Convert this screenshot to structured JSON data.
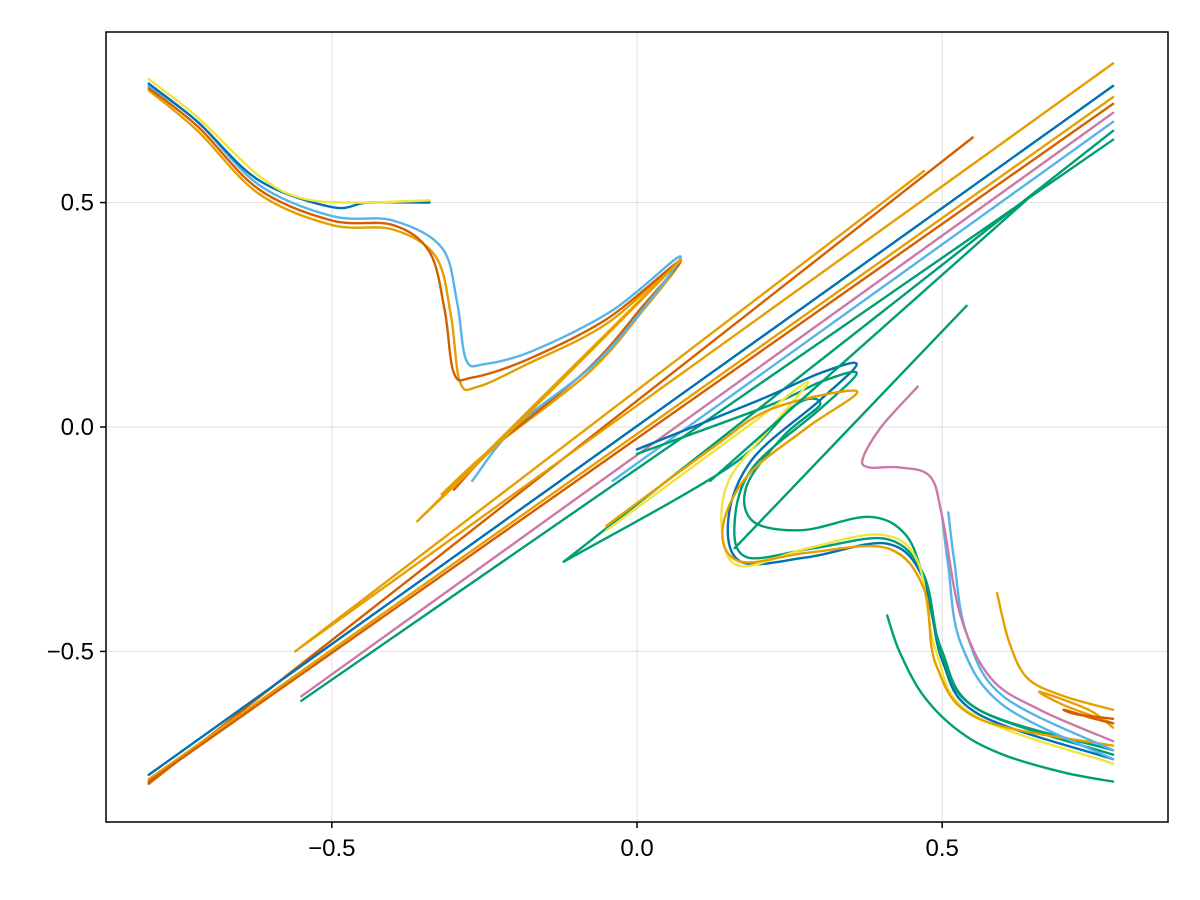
{
  "chart_data": {
    "type": "line",
    "title": "",
    "xlabel": "",
    "ylabel": "",
    "xlim": [
      -0.87,
      0.87
    ],
    "ylim": [
      -0.88,
      0.88
    ],
    "grid": true,
    "legend": "none",
    "xticks": [
      {
        "value": -0.5,
        "label": "−0.5"
      },
      {
        "value": 0.0,
        "label": "0.0"
      },
      {
        "value": 0.5,
        "label": "0.5"
      }
    ],
    "yticks": [
      {
        "value": 0.5,
        "label": "0.5"
      },
      {
        "value": 0.0,
        "label": "0.0"
      },
      {
        "value": -0.5,
        "label": "−0.5"
      }
    ],
    "series": [
      {
        "color": "#e69f00",
        "x": [
          -0.8,
          -0.72,
          -0.62,
          -0.5,
          -0.4,
          -0.33,
          -0.305,
          -0.29,
          -0.26,
          -0.18,
          -0.05,
          0.07,
          0.01,
          -0.08,
          -0.24,
          -0.32
        ],
        "y": [
          0.75,
          0.66,
          0.52,
          0.45,
          0.44,
          0.38,
          0.25,
          0.1,
          0.09,
          0.14,
          0.23,
          0.37,
          0.26,
          0.12,
          -0.05,
          -0.15
        ]
      },
      {
        "color": "#d55e00",
        "x": [
          -0.8,
          -0.72,
          -0.62,
          -0.5,
          -0.4,
          -0.34,
          -0.315,
          -0.3,
          -0.27,
          -0.18,
          -0.05,
          0.07,
          0.01,
          -0.08,
          -0.23,
          -0.3
        ],
        "y": [
          0.755,
          0.67,
          0.53,
          0.46,
          0.45,
          0.39,
          0.26,
          0.12,
          0.11,
          0.15,
          0.24,
          0.37,
          0.27,
          0.13,
          -0.04,
          -0.14
        ]
      },
      {
        "color": "#56b4e9",
        "x": [
          -0.8,
          -0.72,
          -0.62,
          -0.5,
          -0.4,
          -0.32,
          -0.295,
          -0.28,
          -0.25,
          -0.17,
          -0.04,
          0.07,
          0.02,
          -0.07,
          -0.2,
          -0.27
        ],
        "y": [
          0.76,
          0.68,
          0.54,
          0.47,
          0.46,
          0.4,
          0.28,
          0.15,
          0.14,
          0.17,
          0.26,
          0.38,
          0.28,
          0.14,
          0.0,
          -0.12
        ]
      },
      {
        "color": "#0072b2",
        "x": [
          -0.8,
          -0.72,
          -0.62,
          -0.5,
          -0.44,
          -0.34
        ],
        "y": [
          0.765,
          0.68,
          0.55,
          0.49,
          0.5,
          0.5
        ]
      },
      {
        "color": "#f0e442",
        "x": [
          -0.8,
          -0.72,
          -0.62,
          -0.55,
          -0.46,
          -0.34
        ],
        "y": [
          0.775,
          0.69,
          0.56,
          0.51,
          0.5,
          0.505
        ]
      },
      {
        "color": "#d55e00",
        "x": [
          -0.8,
          0.55
        ],
        "y": [
          -0.795,
          0.645
        ]
      },
      {
        "color": "#e69f00",
        "x": [
          -0.56,
          0.47
        ],
        "y": [
          -0.5,
          0.57
        ]
      },
      {
        "color": "#e69f00",
        "x": [
          -0.55,
          0.78
        ],
        "y": [
          -0.49,
          0.81
        ]
      },
      {
        "color": "#e69f00",
        "x": [
          -0.36,
          0.07,
          -0.2,
          -0.36
        ],
        "y": [
          -0.21,
          0.37,
          0.0,
          -0.21
        ]
      },
      {
        "color": "#0072b2",
        "x": [
          -0.8,
          0.78
        ],
        "y": [
          -0.775,
          0.76
        ]
      },
      {
        "color": "#e69f00",
        "x": [
          -0.8,
          0.78
        ],
        "y": [
          -0.785,
          0.735
        ]
      },
      {
        "color": "#d55e00",
        "x": [
          -0.8,
          0.78
        ],
        "y": [
          -0.79,
          0.72
        ]
      },
      {
        "color": "#cc79a7",
        "x": [
          -0.55,
          0.78
        ],
        "y": [
          -0.6,
          0.7
        ]
      },
      {
        "color": "#009e73",
        "x": [
          -0.55,
          0.78
        ],
        "y": [
          -0.61,
          0.64
        ]
      },
      {
        "color": "#009e73",
        "x": [
          -0.12,
          0.78
        ],
        "y": [
          -0.3,
          0.66
        ]
      },
      {
        "color": "#56b4e9",
        "x": [
          -0.04,
          0.78
        ],
        "y": [
          -0.12,
          0.68
        ]
      },
      {
        "color": "#009e73",
        "x": [
          -0.12,
          0.15,
          0.26,
          0.3,
          0.24,
          0.18,
          0.19,
          0.27,
          0.38,
          0.44,
          0.47,
          0.5,
          0.56,
          0.78
        ],
        "y": [
          -0.3,
          -0.09,
          0.05,
          0.05,
          -0.02,
          -0.13,
          -0.21,
          -0.23,
          -0.2,
          -0.24,
          -0.34,
          -0.5,
          -0.63,
          -0.72
        ]
      },
      {
        "color": "#0072b2",
        "x": [
          0.0,
          0.2,
          0.3,
          0.36,
          0.3,
          0.19,
          0.15,
          0.17,
          0.28,
          0.41,
          0.47,
          0.5,
          0.56,
          0.78
        ],
        "y": [
          -0.05,
          0.06,
          0.12,
          0.14,
          0.06,
          -0.07,
          -0.2,
          -0.3,
          -0.29,
          -0.26,
          -0.34,
          -0.52,
          -0.64,
          -0.74
        ]
      },
      {
        "color": "#009e73",
        "x": [
          0.0,
          0.22,
          0.3,
          0.36,
          0.3,
          0.19,
          0.16,
          0.18,
          0.29,
          0.41,
          0.47,
          0.5,
          0.56,
          0.78
        ],
        "y": [
          -0.06,
          0.05,
          0.1,
          0.12,
          0.04,
          -0.09,
          -0.21,
          -0.29,
          -0.27,
          -0.25,
          -0.33,
          -0.51,
          -0.63,
          -0.73
        ]
      },
      {
        "color": "#f0e442",
        "x": [
          -0.05,
          0.1,
          0.2,
          0.28,
          0.22,
          0.15,
          0.14,
          0.17,
          0.28,
          0.4,
          0.46,
          0.49,
          0.55,
          0.78
        ],
        "y": [
          -0.23,
          -0.08,
          0.02,
          0.1,
          0.0,
          -0.12,
          -0.24,
          -0.31,
          -0.27,
          -0.24,
          -0.3,
          -0.5,
          -0.64,
          -0.75
        ]
      },
      {
        "color": "#e69f00",
        "x": [
          -0.05,
          0.12,
          0.22,
          0.36,
          0.28,
          0.18,
          0.14,
          0.17,
          0.28,
          0.41,
          0.47,
          0.49,
          0.56,
          0.78
        ],
        "y": [
          -0.22,
          -0.05,
          0.04,
          0.08,
          0.0,
          -0.11,
          -0.23,
          -0.3,
          -0.28,
          -0.27,
          -0.36,
          -0.53,
          -0.65,
          -0.71
        ]
      },
      {
        "color": "#56b4e9",
        "x": [
          0.51,
          0.52,
          0.54,
          0.6,
          0.78
        ],
        "y": [
          -0.19,
          -0.3,
          -0.46,
          -0.6,
          -0.72
        ]
      },
      {
        "color": "#56b4e9",
        "x": [
          0.5,
          0.51,
          0.53,
          0.6,
          0.78
        ],
        "y": [
          -0.2,
          -0.31,
          -0.48,
          -0.62,
          -0.74
        ]
      },
      {
        "color": "#cc79a7",
        "x": [
          0.46,
          0.4,
          0.37,
          0.38,
          0.43,
          0.48,
          0.5,
          0.53,
          0.58,
          0.66,
          0.78
        ],
        "y": [
          0.09,
          0.0,
          -0.07,
          -0.09,
          -0.09,
          -0.11,
          -0.2,
          -0.42,
          -0.56,
          -0.63,
          -0.7
        ]
      },
      {
        "color": "#009e73",
        "x": [
          0.41,
          0.43,
          0.47,
          0.53,
          0.6,
          0.7,
          0.78
        ],
        "y": [
          -0.42,
          -0.5,
          -0.6,
          -0.68,
          -0.73,
          -0.77,
          -0.79
        ]
      },
      {
        "color": "#009e73",
        "x": [
          0.16,
          0.54
        ],
        "y": [
          -0.27,
          0.27
        ]
      },
      {
        "color": "#009e73",
        "x": [
          0.12,
          0.65
        ],
        "y": [
          -0.12,
          0.52
        ]
      },
      {
        "color": "#e69f00",
        "x": [
          0.59,
          0.61,
          0.64,
          0.7,
          0.78
        ],
        "y": [
          -0.37,
          -0.48,
          -0.56,
          -0.6,
          -0.63
        ]
      },
      {
        "color": "#e69f00",
        "x": [
          0.78,
          0.7,
          0.66,
          0.74,
          0.78
        ],
        "y": [
          -0.66,
          -0.62,
          -0.59,
          -0.63,
          -0.67
        ]
      },
      {
        "color": "#d55e00",
        "x": [
          0.78,
          0.72,
          0.7,
          0.75,
          0.78
        ],
        "y": [
          -0.65,
          -0.64,
          -0.63,
          -0.65,
          -0.66
        ]
      }
    ]
  }
}
